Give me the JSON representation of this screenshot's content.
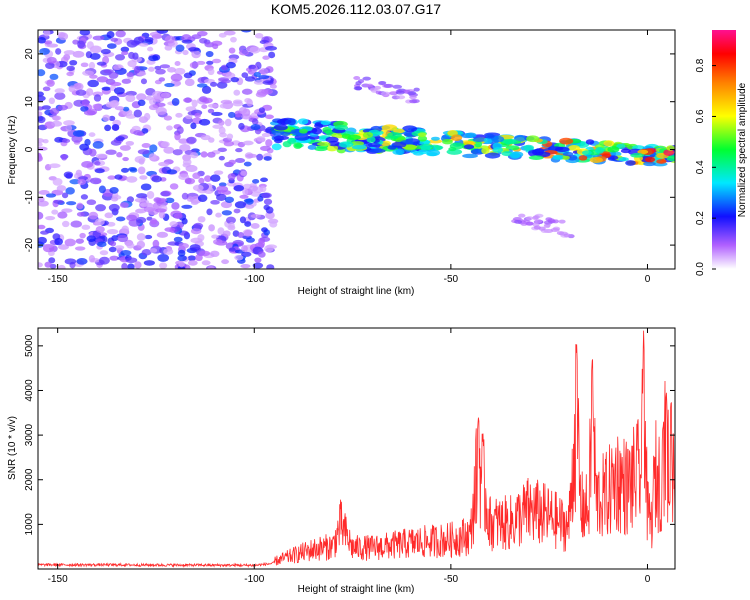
{
  "title": "KOM5.2026.112.03.07.G17",
  "chart_data": [
    {
      "type": "heatmap",
      "xlabel": "Height of straight line (km)",
      "ylabel": "Frequency (Hz)",
      "xlim": [
        -155,
        7
      ],
      "ylim": [
        -25,
        25
      ],
      "xticks": [
        -150,
        -100,
        -50,
        0
      ],
      "yticks": [
        -20,
        -10,
        0,
        10,
        20
      ],
      "colorbar": {
        "label": "Normalized spectral amplitude",
        "range": [
          0,
          0.94
        ],
        "ticks": [
          0.0,
          0.2,
          0.4,
          0.6,
          0.8
        ]
      },
      "features": [
        {
          "x_start": -155,
          "x_end": -95,
          "freq_range": [
            -25,
            25
          ],
          "amplitude_range": [
            0.05,
            0.25
          ],
          "pattern": "broadband noise"
        },
        {
          "x_start": -95,
          "x_end": 7,
          "freq_center": 3.5,
          "freq_end": -1.5,
          "amplitude_range": [
            0.2,
            0.94
          ],
          "pattern": "narrow band"
        },
        {
          "x_start": -74,
          "x_end": -58,
          "freq_center": 14,
          "amplitude_range": [
            0.05,
            0.15
          ],
          "pattern": "faint branch"
        },
        {
          "x_start": -34,
          "x_end": -19,
          "freq_center": -14,
          "amplitude_range": [
            0.05,
            0.12
          ],
          "pattern": "faint branch"
        }
      ],
      "colors": {
        "low": "#d8c8f4",
        "mid": "#1ec8e8",
        "high": "#ff0000"
      }
    },
    {
      "type": "line",
      "xlabel": "Height of straight line (km)",
      "ylabel": "SNR (10 * v/v)",
      "xlim": [
        -155,
        7
      ],
      "ylim": [
        0,
        5400
      ],
      "xticks": [
        -150,
        -100,
        -50,
        0
      ],
      "yticks": [
        1000,
        2000,
        3000,
        4000,
        5000
      ],
      "series": [
        {
          "color": "#ff2a2a",
          "x": [
            -155,
            -140,
            -120,
            -100,
            -95,
            -90,
            -85,
            -80,
            -78,
            -75,
            -70,
            -65,
            -60,
            -55,
            -50,
            -45,
            -43,
            -40,
            -35,
            -30,
            -25,
            -22,
            -20,
            -18,
            -17,
            -15,
            -14,
            -13,
            -10,
            -8,
            -5,
            -3,
            -1.5,
            -1,
            0,
            1,
            2,
            3,
            4,
            4.8,
            5.5,
            6,
            7
          ],
          "y": [
            170,
            170,
            160,
            150,
            230,
            420,
            600,
            700,
            1350,
            650,
            650,
            720,
            800,
            850,
            900,
            1050,
            3400,
            1400,
            1400,
            1800,
            1600,
            1400,
            1300,
            5050,
            1900,
            1800,
            4850,
            2100,
            2300,
            2800,
            2500,
            2800,
            3000,
            5400,
            1700,
            1400,
            2900,
            2700,
            3200,
            3950,
            2700,
            3800,
            2900
          ]
        }
      ]
    }
  ]
}
